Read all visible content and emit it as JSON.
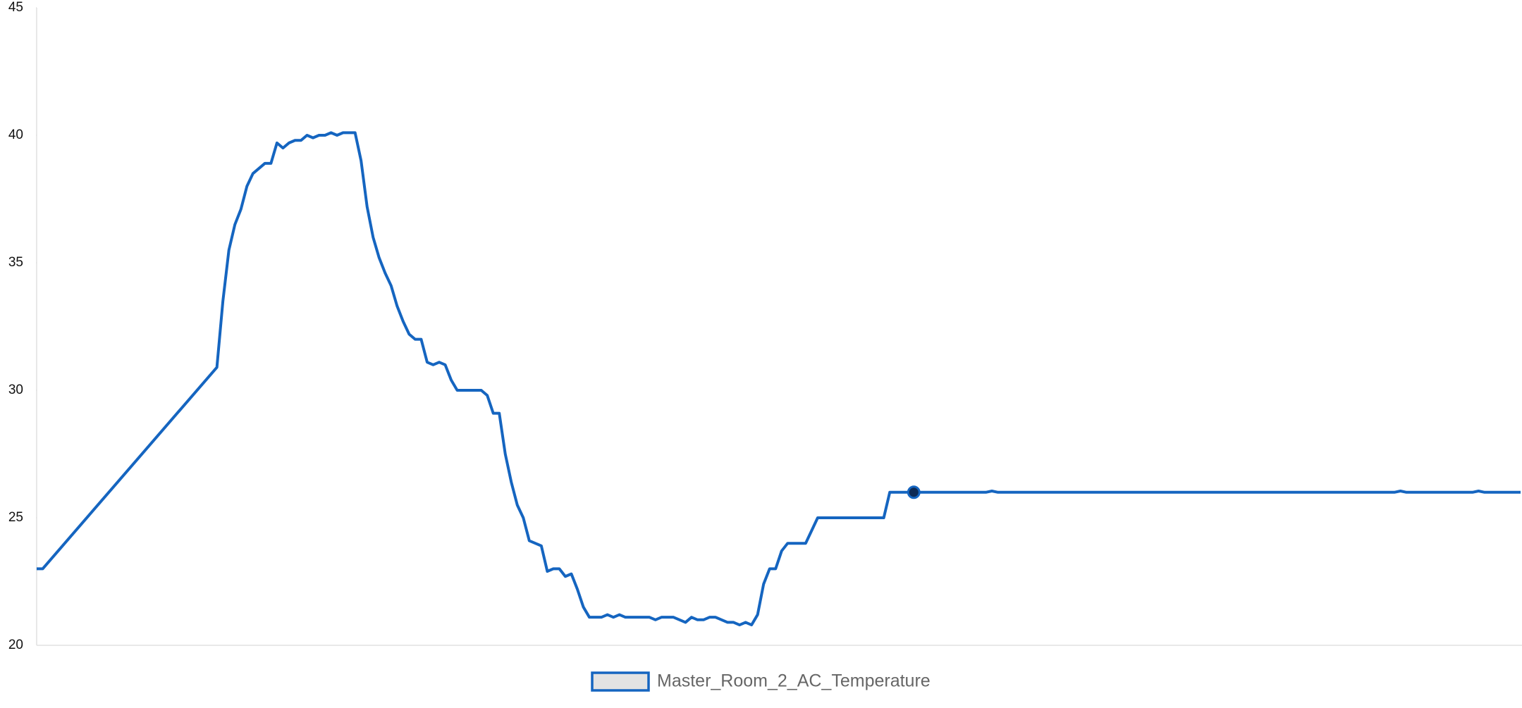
{
  "chart_data": {
    "type": "line",
    "x": [
      0,
      1,
      30,
      31,
      32,
      33,
      34,
      35,
      36,
      37,
      38,
      39,
      40,
      41,
      42,
      43,
      44,
      45,
      46,
      47,
      48,
      49,
      50,
      51,
      52,
      53,
      54,
      55,
      56,
      57,
      58,
      59,
      60,
      61,
      62,
      63,
      64,
      65,
      66,
      67,
      68,
      69,
      70,
      71,
      72,
      73,
      74,
      75,
      76,
      77,
      78,
      79,
      80,
      81,
      82,
      83,
      84,
      85,
      86,
      87,
      88,
      89,
      90,
      91,
      92,
      93,
      94,
      95,
      96,
      97,
      98,
      99,
      100,
      101,
      102,
      103,
      104,
      105,
      106,
      107,
      108,
      109,
      110,
      111,
      112,
      113,
      114,
      115,
      116,
      117,
      118,
      119,
      120,
      121,
      122,
      123,
      124,
      125,
      126,
      127,
      128,
      129,
      130,
      141,
      142,
      146,
      158,
      159,
      160,
      226,
      227,
      228,
      239,
      240,
      241,
      247
    ],
    "xlim": [
      0,
      247
    ],
    "series": [
      {
        "name": "Master_Room_2_AC_Temperature",
        "color": "#1565c0",
        "values": [
          23.0,
          23.0,
          30.9,
          33.5,
          35.5,
          36.5,
          37.1,
          38.0,
          38.5,
          38.7,
          38.9,
          38.9,
          39.7,
          39.5,
          39.7,
          39.8,
          39.8,
          40.0,
          39.9,
          40.0,
          40.0,
          40.1,
          40.0,
          40.1,
          40.1,
          40.1,
          39.0,
          37.2,
          36.0,
          35.2,
          34.6,
          34.1,
          33.3,
          32.7,
          32.2,
          32.0,
          32.0,
          31.1,
          31.0,
          31.1,
          31.0,
          30.4,
          30.0,
          30.0,
          30.0,
          30.0,
          30.0,
          29.8,
          29.1,
          29.1,
          27.5,
          26.4,
          25.5,
          25.0,
          24.1,
          24.0,
          23.9,
          22.9,
          23.0,
          23.0,
          22.7,
          22.8,
          22.2,
          21.5,
          21.1,
          21.1,
          21.1,
          21.2,
          21.1,
          21.2,
          21.1,
          21.1,
          21.1,
          21.1,
          21.1,
          21.0,
          21.1,
          21.1,
          21.1,
          21.0,
          20.9,
          21.1,
          21.0,
          21.0,
          21.1,
          21.1,
          21.0,
          20.9,
          20.9,
          20.8,
          20.9,
          20.8,
          21.2,
          22.4,
          23.0,
          23.0,
          23.7,
          24.0,
          24.0,
          24.0,
          24.0,
          24.5,
          25.0,
          25.0,
          26.0,
          26.0,
          26.0,
          26.05,
          26.0,
          26.0,
          26.05,
          26.0,
          26.0,
          26.05,
          26.0,
          26.0
        ]
      }
    ],
    "highlight": 146,
    "ylim": [
      20,
      45
    ],
    "yticks": [
      20,
      25,
      30,
      35,
      40,
      45
    ],
    "grid": false
  }
}
